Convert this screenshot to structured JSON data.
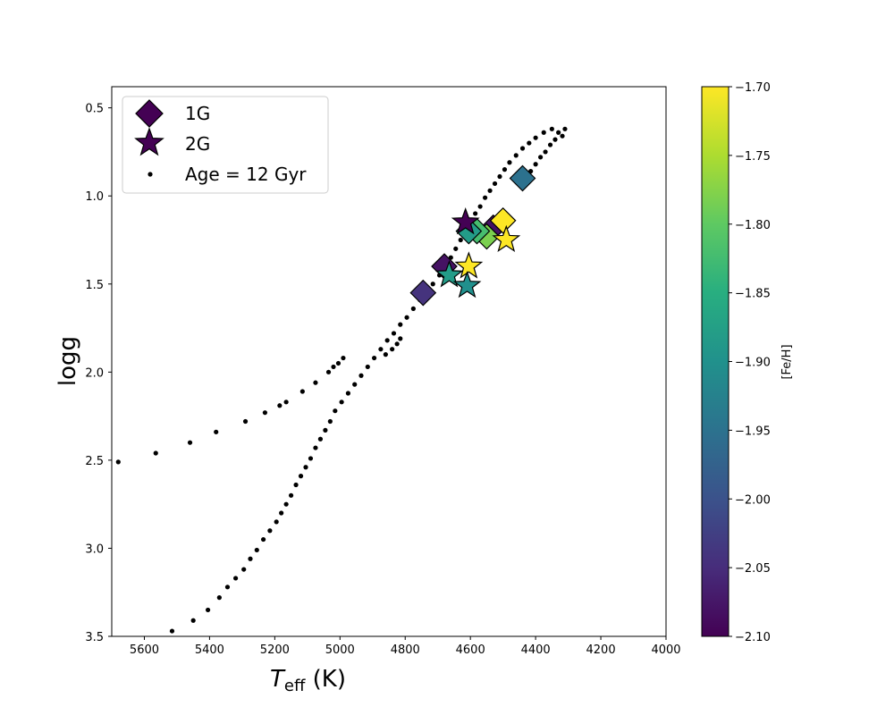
{
  "chart_data": {
    "type": "scatter",
    "xlabel_main": "T",
    "xlabel_sub": "eff",
    "xlabel_unit": " (K)",
    "ylabel": "logg",
    "xlim": [
      5700,
      4000
    ],
    "ylim": [
      3.5,
      0.38
    ],
    "xticks": [
      5600,
      5400,
      5200,
      5000,
      4800,
      4600,
      4400,
      4200,
      4000
    ],
    "yticks": [
      0.5,
      1.0,
      1.5,
      2.0,
      2.5,
      3.0,
      3.5
    ],
    "ytick_labels": [
      "0.5",
      "1.0",
      "1.5",
      "2.0",
      "2.5",
      "3.0",
      "3.5"
    ],
    "colorbar": {
      "label": "[Fe/H]",
      "min": -2.1,
      "max": -1.7,
      "ticks": [
        -1.7,
        -1.75,
        -1.8,
        -1.85,
        -1.9,
        -1.95,
        -2.0,
        -2.05,
        -2.1
      ],
      "tick_labels": [
        "−1.70",
        "−1.75",
        "−1.80",
        "−1.85",
        "−1.90",
        "−1.95",
        "−2.00",
        "−2.05",
        "−2.10"
      ]
    },
    "legend": {
      "position": "upper-left",
      "entries": [
        {
          "marker": "diamond",
          "label": "1G",
          "color": "#440154"
        },
        {
          "marker": "star",
          "label": "2G",
          "color": "#440154"
        },
        {
          "marker": "dot",
          "label": "Age = 12 Gyr",
          "color": "#000000"
        }
      ]
    },
    "series": [
      {
        "name": "1G",
        "marker": "diamond",
        "points": [
          {
            "x": 4440,
            "y": 0.9,
            "feh": -1.95
          },
          {
            "x": 4530,
            "y": 1.18,
            "feh": -2.08
          },
          {
            "x": 4500,
            "y": 1.14,
            "feh": -1.7
          },
          {
            "x": 4550,
            "y": 1.23,
            "feh": -1.78
          },
          {
            "x": 4580,
            "y": 1.2,
            "feh": -1.82
          },
          {
            "x": 4605,
            "y": 1.2,
            "feh": -1.88
          },
          {
            "x": 4680,
            "y": 1.4,
            "feh": -2.08
          },
          {
            "x": 4745,
            "y": 1.55,
            "feh": -2.04
          }
        ]
      },
      {
        "name": "2G",
        "marker": "star",
        "points": [
          {
            "x": 4615,
            "y": 1.15,
            "feh": -2.1
          },
          {
            "x": 4490,
            "y": 1.25,
            "feh": -1.7
          },
          {
            "x": 4605,
            "y": 1.4,
            "feh": -1.7
          },
          {
            "x": 4665,
            "y": 1.45,
            "feh": -1.88
          },
          {
            "x": 4610,
            "y": 1.51,
            "feh": -1.9
          }
        ]
      },
      {
        "name": "Age = 12 Gyr",
        "marker": "dot",
        "points": [
          {
            "x": 5515,
            "y": 3.47
          },
          {
            "x": 5450,
            "y": 3.41
          },
          {
            "x": 5405,
            "y": 3.35
          },
          {
            "x": 5370,
            "y": 3.28
          },
          {
            "x": 5345,
            "y": 3.22
          },
          {
            "x": 5320,
            "y": 3.17
          },
          {
            "x": 5295,
            "y": 3.12
          },
          {
            "x": 5275,
            "y": 3.06
          },
          {
            "x": 5255,
            "y": 3.01
          },
          {
            "x": 5235,
            "y": 2.95
          },
          {
            "x": 5215,
            "y": 2.9
          },
          {
            "x": 5195,
            "y": 2.85
          },
          {
            "x": 5180,
            "y": 2.8
          },
          {
            "x": 5165,
            "y": 2.75
          },
          {
            "x": 5150,
            "y": 2.7
          },
          {
            "x": 5135,
            "y": 2.64
          },
          {
            "x": 5120,
            "y": 2.59
          },
          {
            "x": 5105,
            "y": 2.54
          },
          {
            "x": 5090,
            "y": 2.49
          },
          {
            "x": 5075,
            "y": 2.43
          },
          {
            "x": 5060,
            "y": 2.38
          },
          {
            "x": 5045,
            "y": 2.33
          },
          {
            "x": 5030,
            "y": 2.28
          },
          {
            "x": 5015,
            "y": 2.22
          },
          {
            "x": 4995,
            "y": 2.17
          },
          {
            "x": 4975,
            "y": 2.12
          },
          {
            "x": 4955,
            "y": 2.07
          },
          {
            "x": 4935,
            "y": 2.02
          },
          {
            "x": 4915,
            "y": 1.97
          },
          {
            "x": 4895,
            "y": 1.92
          },
          {
            "x": 4875,
            "y": 1.87
          },
          {
            "x": 4855,
            "y": 1.82
          },
          {
            "x": 4835,
            "y": 1.78
          },
          {
            "x": 4815,
            "y": 1.73
          },
          {
            "x": 4795,
            "y": 1.69
          },
          {
            "x": 4775,
            "y": 1.64
          },
          {
            "x": 4755,
            "y": 1.59
          },
          {
            "x": 4735,
            "y": 1.55
          },
          {
            "x": 4715,
            "y": 1.5
          },
          {
            "x": 4695,
            "y": 1.45
          },
          {
            "x": 4675,
            "y": 1.4
          },
          {
            "x": 4660,
            "y": 1.35
          },
          {
            "x": 4645,
            "y": 1.3
          },
          {
            "x": 4630,
            "y": 1.25
          },
          {
            "x": 4615,
            "y": 1.2
          },
          {
            "x": 4600,
            "y": 1.15
          },
          {
            "x": 4585,
            "y": 1.1
          },
          {
            "x": 4570,
            "y": 1.06
          },
          {
            "x": 4555,
            "y": 1.01
          },
          {
            "x": 4540,
            "y": 0.97
          },
          {
            "x": 4525,
            "y": 0.93
          },
          {
            "x": 4510,
            "y": 0.89
          },
          {
            "x": 4495,
            "y": 0.85
          },
          {
            "x": 4480,
            "y": 0.81
          },
          {
            "x": 4460,
            "y": 0.77
          },
          {
            "x": 4440,
            "y": 0.73
          },
          {
            "x": 4420,
            "y": 0.7
          },
          {
            "x": 4400,
            "y": 0.67
          },
          {
            "x": 4375,
            "y": 0.64
          },
          {
            "x": 4350,
            "y": 0.62
          },
          {
            "x": 4330,
            "y": 0.64
          },
          {
            "x": 4340,
            "y": 0.68
          },
          {
            "x": 4355,
            "y": 0.71
          },
          {
            "x": 4370,
            "y": 0.75
          },
          {
            "x": 4385,
            "y": 0.78
          },
          {
            "x": 4400,
            "y": 0.82
          },
          {
            "x": 4415,
            "y": 0.86
          },
          {
            "x": 4430,
            "y": 0.9
          },
          {
            "x": 4445,
            "y": 0.94
          },
          {
            "x": 4310,
            "y": 0.62
          },
          {
            "x": 4318,
            "y": 0.66
          },
          {
            "x": 4815,
            "y": 1.81
          },
          {
            "x": 4825,
            "y": 1.84
          },
          {
            "x": 4840,
            "y": 1.87
          },
          {
            "x": 4860,
            "y": 1.9
          },
          {
            "x": 4990,
            "y": 1.92
          },
          {
            "x": 5005,
            "y": 1.95
          },
          {
            "x": 5020,
            "y": 1.97
          },
          {
            "x": 5035,
            "y": 2.0
          },
          {
            "x": 5075,
            "y": 2.06
          },
          {
            "x": 5115,
            "y": 2.11
          },
          {
            "x": 5165,
            "y": 2.17
          },
          {
            "x": 5185,
            "y": 2.19
          },
          {
            "x": 5230,
            "y": 2.23
          },
          {
            "x": 5290,
            "y": 2.28
          },
          {
            "x": 5380,
            "y": 2.34
          },
          {
            "x": 5460,
            "y": 2.4
          },
          {
            "x": 5565,
            "y": 2.46
          },
          {
            "x": 5680,
            "y": 2.51
          }
        ]
      }
    ]
  }
}
